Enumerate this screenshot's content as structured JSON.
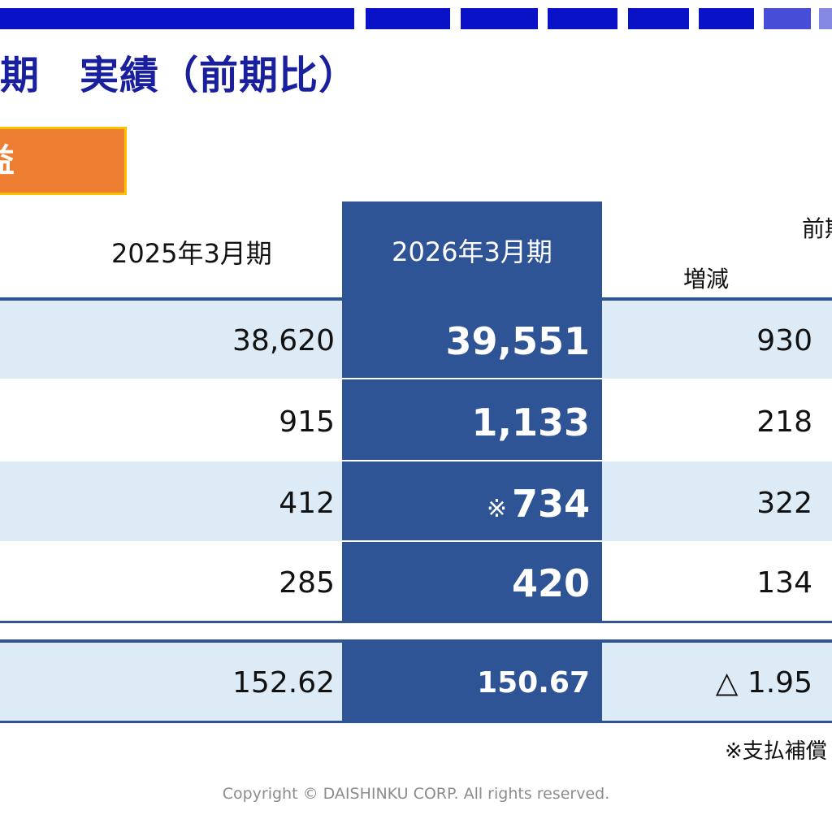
{
  "title": "期　実績（前期比）",
  "tag_label": "益",
  "table": {
    "header_prev": "2025年3月期",
    "header_cur": "2026年3月期",
    "header_diff_partial": "前期",
    "header_inc": "増減",
    "rows": [
      {
        "prev": "38,620",
        "cur": "39,551",
        "cur_mark": "",
        "diff": "930"
      },
      {
        "prev": "915",
        "cur": "1,133",
        "cur_mark": "",
        "diff": "218"
      },
      {
        "prev": "412",
        "cur": "734",
        "cur_mark": "※",
        "diff": "322"
      },
      {
        "prev": "285",
        "cur": "420",
        "cur_mark": "",
        "diff": "134"
      }
    ],
    "summary_row": {
      "prev": "152.62",
      "cur": "150.67",
      "diff": "△ 1.95"
    }
  },
  "note": "※支払補償",
  "copyright": "Copyright © DAISHINKU CORP. All rights reserved.",
  "colors": {
    "primary": "#2F5496",
    "shade": "#DDEBF7",
    "accent": "#ED7D31",
    "top_bar": "#0A12C8"
  }
}
